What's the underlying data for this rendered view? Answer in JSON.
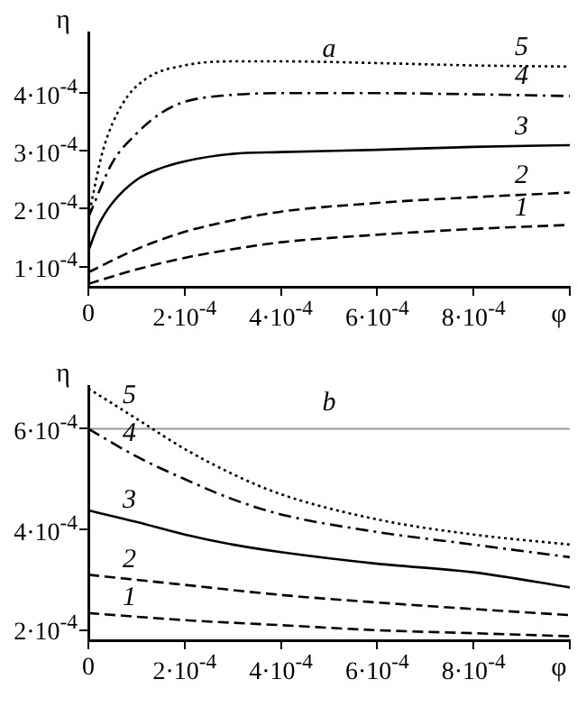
{
  "chart_data": [
    {
      "type": "line",
      "title": "a",
      "xlabel": "φ",
      "ylabel": "η",
      "xlim": [
        0,
        0.001
      ],
      "ylim": [
        6.5e-05,
        0.000505
      ],
      "xticks": [
        0,
        {
          "value": 0.0002,
          "label": "2·10$^{-4}$"
        },
        {
          "value": 0.0004,
          "label": "4·10$^{-4}$"
        },
        {
          "value": 0.0006,
          "label": "6·10$^{-4}$"
        },
        {
          "value": 0.0008,
          "label": "8·10$^{-4}$"
        },
        {
          "value": 0.001,
          "label": null
        }
      ],
      "yticks": [
        {
          "value": 0.0001,
          "label": "1·10$^{-4}$"
        },
        {
          "value": 0.0002,
          "label": "2·10$^{-4}$"
        },
        {
          "value": 0.0003,
          "label": "3·10$^{-4}$"
        },
        {
          "value": 0.0004,
          "label": "4·10$^{-4}$"
        }
      ],
      "grid": false,
      "legend": false,
      "marker": "none",
      "series": [
        {
          "name": "1",
          "color": "#000000",
          "line_style": "dashed",
          "x": [
            0,
            0.0001,
            0.0002,
            0.0003,
            0.0004,
            0.0006,
            0.0008,
            0.001
          ],
          "values": [
            7e-05,
            9.5e-05,
            0.000115,
            0.00013,
            0.000142,
            0.000155,
            0.000165,
            0.000172
          ]
        },
        {
          "name": "2",
          "color": "#000000",
          "line_style": "dashed",
          "x": [
            0,
            0.0001,
            0.0002,
            0.0003,
            0.0004,
            0.0006,
            0.0008,
            0.001
          ],
          "values": [
            9e-05,
            0.00013,
            0.00016,
            0.00018,
            0.000195,
            0.00021,
            0.00022,
            0.000228
          ]
        },
        {
          "name": "3",
          "color": "#000000",
          "line_style": "solid",
          "x": [
            0,
            2e-05,
            5e-05,
            0.0001,
            0.00015,
            0.0002,
            0.0003,
            0.0004,
            0.0006,
            0.0008,
            0.001
          ],
          "values": [
            0.000127,
            0.00017,
            0.00021,
            0.00025,
            0.00027,
            0.000282,
            0.000295,
            0.000298,
            0.000302,
            0.000307,
            0.00031
          ]
        },
        {
          "name": "4",
          "color": "#000000",
          "line_style": "dashdot",
          "x": [
            0,
            5e-05,
            0.0001,
            0.00015,
            0.0002,
            0.0003,
            0.0004,
            0.0006,
            0.0008,
            0.001
          ],
          "values": [
            0.000185,
            0.00028,
            0.00033,
            0.000365,
            0.000385,
            0.000397,
            0.0004,
            0.0004,
            0.000398,
            0.000395
          ]
        },
        {
          "name": "5",
          "color": "#000000",
          "line_style": "dotted",
          "x": [
            0,
            3e-05,
            7e-05,
            0.00012,
            0.0002,
            0.0003,
            0.0004,
            0.0006,
            0.0008,
            0.001
          ],
          "values": [
            0.000185,
            0.0003,
            0.00038,
            0.000425,
            0.000448,
            0.000455,
            0.000455,
            0.000452,
            0.000448,
            0.000446
          ]
        }
      ]
    },
    {
      "type": "line",
      "title": "b",
      "xlabel": "φ",
      "ylabel": "η",
      "xlim": [
        0,
        0.001
      ],
      "ylim": [
        0.00018,
        0.000685
      ],
      "xticks": [
        0,
        {
          "value": 0.0002,
          "label": "2·10$^{-4}$"
        },
        {
          "value": 0.0004,
          "label": "4·10$^{-4}$"
        },
        {
          "value": 0.0006,
          "label": "6·10$^{-4}$"
        },
        {
          "value": 0.0008,
          "label": "8·10$^{-4}$"
        },
        {
          "value": 0.001,
          "label": null
        }
      ],
      "yticks": [
        {
          "value": 0.0002,
          "label": "2·10$^{-4}$"
        },
        {
          "value": 0.0004,
          "label": "4·10$^{-4}$"
        },
        {
          "value": 0.0006,
          "label": "6·10$^{-4}$"
        }
      ],
      "grid": false,
      "legend": false,
      "marker": "none",
      "ref_lines": [
        {
          "axis": "y",
          "value": 0.0006,
          "color": "#999999"
        }
      ],
      "series": [
        {
          "name": "1",
          "color": "#000000",
          "line_style": "dashed",
          "x": [
            0,
            0.0002,
            0.0004,
            0.0006,
            0.0008,
            0.001
          ],
          "values": [
            0.000234,
            0.00022,
            0.00021,
            0.0002,
            0.000194,
            0.000188
          ]
        },
        {
          "name": "2",
          "color": "#000000",
          "line_style": "dashed",
          "x": [
            0,
            0.0002,
            0.0004,
            0.0006,
            0.0008,
            0.001
          ],
          "values": [
            0.00031,
            0.00029,
            0.00027,
            0.000255,
            0.000242,
            0.00023
          ]
        },
        {
          "name": "3",
          "color": "#000000",
          "line_style": "solid",
          "x": [
            0,
            0.0001,
            0.0002,
            0.0003,
            0.0004,
            0.0006,
            0.0008,
            0.001
          ],
          "values": [
            0.000438,
            0.000415,
            0.00039,
            0.00037,
            0.000355,
            0.000332,
            0.000315,
            0.000285
          ]
        },
        {
          "name": "4",
          "color": "#000000",
          "line_style": "dashdot",
          "x": [
            0,
            0.0001,
            0.0002,
            0.0003,
            0.0004,
            0.0006,
            0.0008,
            0.001
          ],
          "values": [
            0.0006,
            0.000545,
            0.0005,
            0.00046,
            0.00043,
            0.000395,
            0.00037,
            0.000345
          ]
        },
        {
          "name": "5",
          "color": "#000000",
          "line_style": "dotted",
          "x": [
            0,
            0.0001,
            0.0002,
            0.0003,
            0.0004,
            0.0006,
            0.0008,
            0.001
          ],
          "values": [
            0.00068,
            0.00062,
            0.00056,
            0.00051,
            0.00047,
            0.00042,
            0.00039,
            0.00037
          ]
        }
      ]
    }
  ]
}
